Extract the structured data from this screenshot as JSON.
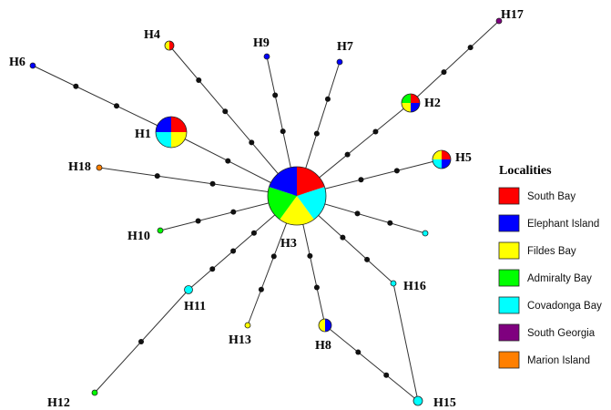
{
  "legend": {
    "title": "Localities",
    "items": [
      {
        "label": "South Bay",
        "color": "#ff0000"
      },
      {
        "label": "Elephant Island",
        "color": "#0000ff"
      },
      {
        "label": "Fildes Bay",
        "color": "#ffff00"
      },
      {
        "label": "Admiralty Bay",
        "color": "#00ff00"
      },
      {
        "label": "Covadonga Bay",
        "color": "#00ffff"
      },
      {
        "label": "South Georgia",
        "color": "#7f007f"
      },
      {
        "label": "Marion Island",
        "color": "#ff7f00"
      }
    ]
  },
  "haplotypes": [
    {
      "id": "H1",
      "label": "H1",
      "composition": {
        "South Bay": 1,
        "Fildes Bay": 1,
        "Covadonga Bay": 1,
        "Elephant Island": 1
      }
    },
    {
      "id": "H2",
      "label": "H2",
      "composition": {
        "South Bay": 1,
        "Elephant Island": 1,
        "Fildes Bay": 1,
        "Admiralty Bay": 1
      }
    },
    {
      "id": "H3",
      "label": "H3",
      "composition": {
        "South Bay": 1,
        "Covadonga Bay": 1,
        "Fildes Bay": 1,
        "Admiralty Bay": 1,
        "Elephant Island": 1
      }
    },
    {
      "id": "H4",
      "label": "H4",
      "composition": {
        "South Bay": 1,
        "Fildes Bay": 1
      }
    },
    {
      "id": "H5",
      "label": "H5",
      "composition": {
        "South Bay": 1,
        "Elephant Island": 1,
        "Covadonga Bay": 1,
        "Fildes Bay": 1
      }
    },
    {
      "id": "H6",
      "label": "H6",
      "composition": {
        "Elephant Island": 1
      }
    },
    {
      "id": "H7",
      "label": "H7",
      "composition": {
        "Elephant Island": 1
      }
    },
    {
      "id": "H8",
      "label": "H8",
      "composition": {
        "Elephant Island": 1,
        "Fildes Bay": 1
      }
    },
    {
      "id": "H9",
      "label": "H9",
      "composition": {
        "Elephant Island": 1
      }
    },
    {
      "id": "H10",
      "label": "H10",
      "composition": {
        "Admiralty Bay": 1
      }
    },
    {
      "id": "H11",
      "label": "H11",
      "composition": {
        "Covadonga Bay": 1
      }
    },
    {
      "id": "H12",
      "label": "H12",
      "composition": {
        "Admiralty Bay": 1
      }
    },
    {
      "id": "H13",
      "label": "H13",
      "composition": {
        "Fildes Bay": 1
      }
    },
    {
      "id": "H15",
      "label": "H15",
      "composition": {
        "Covadonga Bay": 1
      }
    },
    {
      "id": "H16",
      "label": "H16",
      "composition": {
        "Covadonga Bay": 1
      }
    },
    {
      "id": "H17",
      "label": "H17",
      "composition": {
        "South Georgia": 1
      }
    },
    {
      "id": "H18",
      "label": "H18",
      "composition": {
        "Marion Island": 1
      }
    },
    {
      "id": "unlabeled",
      "label": "",
      "composition": {
        "Covadonga Bay": 1
      }
    }
  ]
}
